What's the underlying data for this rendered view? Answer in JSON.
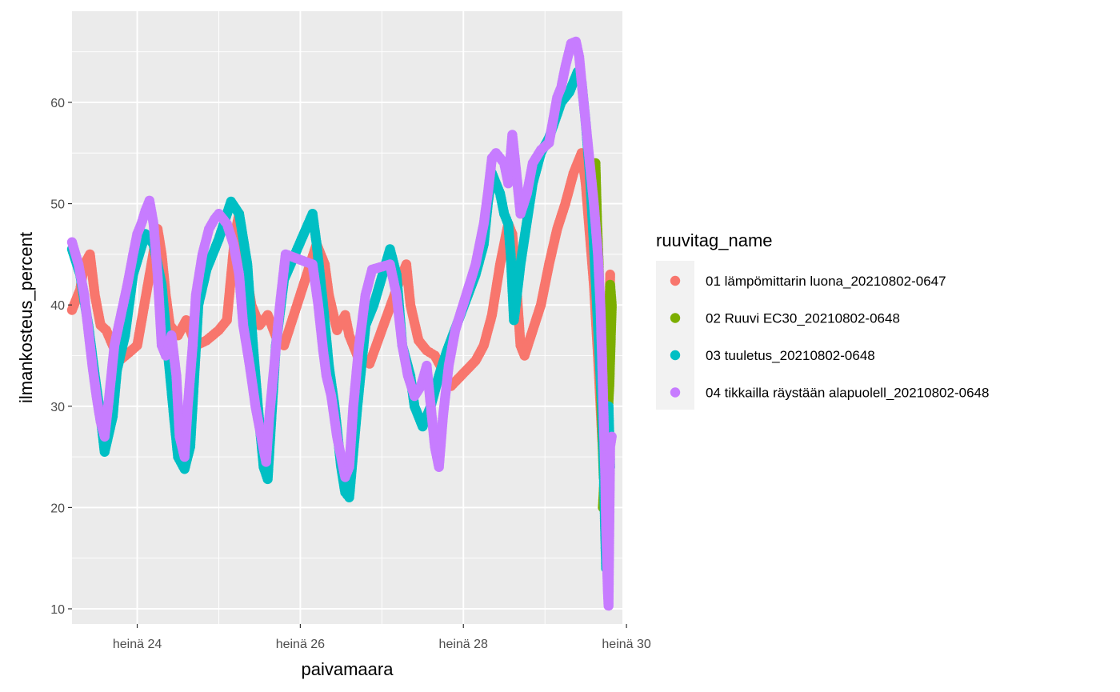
{
  "chart_data": {
    "type": "scatter",
    "title": "",
    "xlabel": "paivamaara",
    "ylabel": "ilmankosteus_percent",
    "x_unit": "days of July (heinä)",
    "xlim": [
      23.2,
      29.95
    ],
    "ylim": [
      8.5,
      69
    ],
    "x_ticks": [
      {
        "value": 24,
        "label": "heinä 24"
      },
      {
        "value": 26,
        "label": "heinä 26"
      },
      {
        "value": 28,
        "label": "heinä 28"
      },
      {
        "value": 30,
        "label": "heinä 30"
      }
    ],
    "y_ticks": [
      10,
      20,
      30,
      40,
      50,
      60
    ],
    "grid": true,
    "legend": {
      "title": "ruuvitag_name",
      "placement": "right"
    },
    "series": [
      {
        "name": "01 lämpömittarin luona_20210802-0647",
        "color": "#F8766D",
        "points": [
          [
            23.2,
            39.5
          ],
          [
            23.3,
            41.5
          ],
          [
            23.35,
            44
          ],
          [
            23.42,
            45
          ],
          [
            23.48,
            41
          ],
          [
            23.55,
            38
          ],
          [
            23.62,
            37.5
          ],
          [
            23.7,
            36
          ],
          [
            23.78,
            34.5
          ],
          [
            23.9,
            35.3
          ],
          [
            24.0,
            36
          ],
          [
            24.25,
            47.5
          ],
          [
            24.3,
            45
          ],
          [
            24.35,
            41
          ],
          [
            24.4,
            38
          ],
          [
            24.5,
            37
          ],
          [
            24.6,
            38.5
          ],
          [
            24.72,
            36
          ],
          [
            24.85,
            36.5
          ],
          [
            25.0,
            37.5
          ],
          [
            25.1,
            38.5
          ],
          [
            25.2,
            47
          ],
          [
            25.25,
            49
          ],
          [
            25.3,
            45
          ],
          [
            25.4,
            40
          ],
          [
            25.5,
            38
          ],
          [
            25.6,
            39
          ],
          [
            25.72,
            36.5
          ],
          [
            25.8,
            36
          ],
          [
            26.2,
            46
          ],
          [
            26.3,
            44
          ],
          [
            26.35,
            41
          ],
          [
            26.45,
            37.5
          ],
          [
            26.55,
            39
          ],
          [
            26.6,
            37
          ],
          [
            26.7,
            35
          ],
          [
            26.85,
            34.2
          ],
          [
            27.2,
            42
          ],
          [
            27.3,
            44
          ],
          [
            27.35,
            40
          ],
          [
            27.45,
            36.5
          ],
          [
            27.55,
            35.5
          ],
          [
            27.65,
            35
          ],
          [
            27.75,
            33.5
          ],
          [
            27.85,
            32
          ],
          [
            28.15,
            34.5
          ],
          [
            28.25,
            36
          ],
          [
            28.35,
            39
          ],
          [
            28.45,
            44
          ],
          [
            28.55,
            48
          ],
          [
            28.6,
            47
          ],
          [
            28.65,
            42
          ],
          [
            28.7,
            36
          ],
          [
            28.75,
            35
          ],
          [
            28.85,
            37.5
          ],
          [
            28.95,
            40
          ],
          [
            29.05,
            44
          ],
          [
            29.15,
            47.5
          ],
          [
            29.25,
            50
          ],
          [
            29.35,
            53
          ],
          [
            29.45,
            55
          ],
          [
            29.5,
            52
          ],
          [
            29.55,
            47
          ],
          [
            29.6,
            42
          ],
          [
            29.65,
            35
          ],
          [
            29.7,
            27
          ],
          [
            29.75,
            21
          ],
          [
            29.8,
            43
          ]
        ]
      },
      {
        "name": "02 Ruuvi EC30_20210802-0648",
        "color": "#7CAE00",
        "points": [
          [
            29.62,
            54
          ],
          [
            29.64,
            48
          ],
          [
            29.66,
            44
          ],
          [
            29.68,
            33
          ],
          [
            29.7,
            28
          ],
          [
            29.72,
            23
          ],
          [
            29.74,
            36
          ],
          [
            29.76,
            39
          ],
          [
            29.78,
            35
          ],
          [
            29.8,
            42
          ],
          [
            29.82,
            40
          ],
          [
            29.79,
            32
          ],
          [
            29.71,
            20
          ]
        ]
      },
      {
        "name": "03 tuuletus_20210802-0648",
        "color": "#00BFC4",
        "points": [
          [
            23.2,
            45.5
          ],
          [
            23.3,
            43
          ],
          [
            23.4,
            38
          ],
          [
            23.48,
            33
          ],
          [
            23.55,
            29
          ],
          [
            23.6,
            25.5
          ],
          [
            23.7,
            29
          ],
          [
            23.75,
            33.5
          ],
          [
            23.85,
            37
          ],
          [
            23.95,
            43
          ],
          [
            24.1,
            47
          ],
          [
            24.2,
            46
          ],
          [
            24.3,
            42
          ],
          [
            24.38,
            35
          ],
          [
            24.45,
            29
          ],
          [
            24.5,
            25
          ],
          [
            24.58,
            23.8
          ],
          [
            24.65,
            26
          ],
          [
            24.75,
            40
          ],
          [
            24.85,
            43.5
          ],
          [
            25.0,
            46.5
          ],
          [
            25.15,
            50.2
          ],
          [
            25.25,
            49
          ],
          [
            25.35,
            44
          ],
          [
            25.42,
            36
          ],
          [
            25.48,
            30
          ],
          [
            25.55,
            24
          ],
          [
            25.6,
            22.8
          ],
          [
            25.7,
            36
          ],
          [
            25.8,
            42.5
          ],
          [
            26.15,
            49
          ],
          [
            26.2,
            46
          ],
          [
            26.28,
            40
          ],
          [
            26.35,
            34
          ],
          [
            26.42,
            30
          ],
          [
            26.5,
            24
          ],
          [
            26.55,
            21.5
          ],
          [
            26.6,
            21
          ],
          [
            26.7,
            30
          ],
          [
            26.8,
            38
          ],
          [
            26.9,
            40
          ],
          [
            27.1,
            45.5
          ],
          [
            27.18,
            43
          ],
          [
            27.25,
            36
          ],
          [
            27.35,
            33
          ],
          [
            27.4,
            30
          ],
          [
            27.5,
            28
          ],
          [
            27.6,
            30
          ],
          [
            27.7,
            33
          ],
          [
            27.8,
            35.5
          ],
          [
            28.15,
            43
          ],
          [
            28.25,
            46
          ],
          [
            28.3,
            50
          ],
          [
            28.35,
            53
          ],
          [
            28.45,
            51
          ],
          [
            28.5,
            49
          ],
          [
            28.55,
            48
          ],
          [
            28.58,
            45
          ],
          [
            28.62,
            38.5
          ],
          [
            28.7,
            44
          ],
          [
            28.85,
            52
          ],
          [
            28.95,
            55
          ],
          [
            29.05,
            56.5
          ],
          [
            29.2,
            60
          ],
          [
            29.3,
            61
          ],
          [
            29.4,
            63
          ],
          [
            29.45,
            62
          ],
          [
            29.5,
            58
          ],
          [
            29.55,
            53
          ],
          [
            29.6,
            46
          ],
          [
            29.65,
            38
          ],
          [
            29.7,
            30
          ],
          [
            29.72,
            24
          ],
          [
            29.74,
            17
          ],
          [
            29.75,
            14
          ],
          [
            29.78,
            30
          ],
          [
            29.8,
            24
          ]
        ]
      },
      {
        "name": "04 tikkailla räystään alapuolell_20210802-0648",
        "color": "#C77CFF",
        "points": [
          [
            23.2,
            46.2
          ],
          [
            23.28,
            44
          ],
          [
            23.35,
            41
          ],
          [
            23.4,
            37.5
          ],
          [
            23.45,
            34
          ],
          [
            23.5,
            31
          ],
          [
            23.55,
            28.5
          ],
          [
            23.6,
            27
          ],
          [
            23.65,
            30.5
          ],
          [
            23.72,
            36
          ],
          [
            23.8,
            39
          ],
          [
            23.88,
            42
          ],
          [
            23.95,
            45
          ],
          [
            24.0,
            47
          ],
          [
            24.05,
            48
          ],
          [
            24.1,
            49.3
          ],
          [
            24.15,
            50.3
          ],
          [
            24.2,
            48
          ],
          [
            24.25,
            43
          ],
          [
            24.3,
            36
          ],
          [
            24.35,
            35
          ],
          [
            24.42,
            37
          ],
          [
            24.48,
            33
          ],
          [
            24.52,
            27
          ],
          [
            24.58,
            25
          ],
          [
            24.62,
            30
          ],
          [
            24.68,
            36
          ],
          [
            24.72,
            41
          ],
          [
            24.8,
            45
          ],
          [
            24.88,
            47.5
          ],
          [
            24.95,
            48.5
          ],
          [
            25.0,
            49
          ],
          [
            25.1,
            48
          ],
          [
            25.18,
            46
          ],
          [
            25.25,
            43
          ],
          [
            25.3,
            38
          ],
          [
            25.38,
            34
          ],
          [
            25.45,
            30
          ],
          [
            25.52,
            27
          ],
          [
            25.58,
            24.5
          ],
          [
            25.62,
            29
          ],
          [
            25.68,
            34
          ],
          [
            25.75,
            40
          ],
          [
            25.82,
            45
          ],
          [
            26.15,
            44
          ],
          [
            26.22,
            40
          ],
          [
            26.28,
            35.5
          ],
          [
            26.32,
            33
          ],
          [
            26.38,
            31
          ],
          [
            26.45,
            27
          ],
          [
            26.5,
            25
          ],
          [
            26.55,
            23
          ],
          [
            26.6,
            24
          ],
          [
            26.65,
            30
          ],
          [
            26.72,
            36
          ],
          [
            26.8,
            41
          ],
          [
            26.88,
            43.5
          ],
          [
            27.1,
            44
          ],
          [
            27.18,
            41
          ],
          [
            27.25,
            36
          ],
          [
            27.32,
            33
          ],
          [
            27.4,
            31
          ],
          [
            27.48,
            32
          ],
          [
            27.55,
            34
          ],
          [
            27.6,
            30
          ],
          [
            27.65,
            26
          ],
          [
            27.7,
            24
          ],
          [
            27.75,
            29
          ],
          [
            27.82,
            34
          ],
          [
            27.9,
            37.5
          ],
          [
            28.15,
            44
          ],
          [
            28.25,
            48
          ],
          [
            28.3,
            51
          ],
          [
            28.35,
            54.5
          ],
          [
            28.4,
            55
          ],
          [
            28.45,
            54.5
          ],
          [
            28.5,
            54
          ],
          [
            28.55,
            52
          ],
          [
            28.6,
            56.8
          ],
          [
            28.65,
            53
          ],
          [
            28.7,
            49
          ],
          [
            28.78,
            51
          ],
          [
            28.85,
            54
          ],
          [
            28.95,
            55.3
          ],
          [
            29.05,
            56
          ],
          [
            29.15,
            60.5
          ],
          [
            29.2,
            61.5
          ],
          [
            29.25,
            63.5
          ],
          [
            29.32,
            65.8
          ],
          [
            29.38,
            66
          ],
          [
            29.42,
            64.5
          ],
          [
            29.45,
            62
          ],
          [
            29.5,
            58
          ],
          [
            29.55,
            54
          ],
          [
            29.6,
            50
          ],
          [
            29.65,
            45
          ],
          [
            29.68,
            40
          ],
          [
            29.7,
            35
          ],
          [
            29.72,
            29
          ],
          [
            29.74,
            23
          ],
          [
            29.75,
            18
          ],
          [
            29.76,
            15
          ],
          [
            29.77,
            12
          ],
          [
            29.78,
            10.3
          ],
          [
            29.8,
            26
          ],
          [
            29.82,
            27
          ]
        ]
      }
    ]
  }
}
